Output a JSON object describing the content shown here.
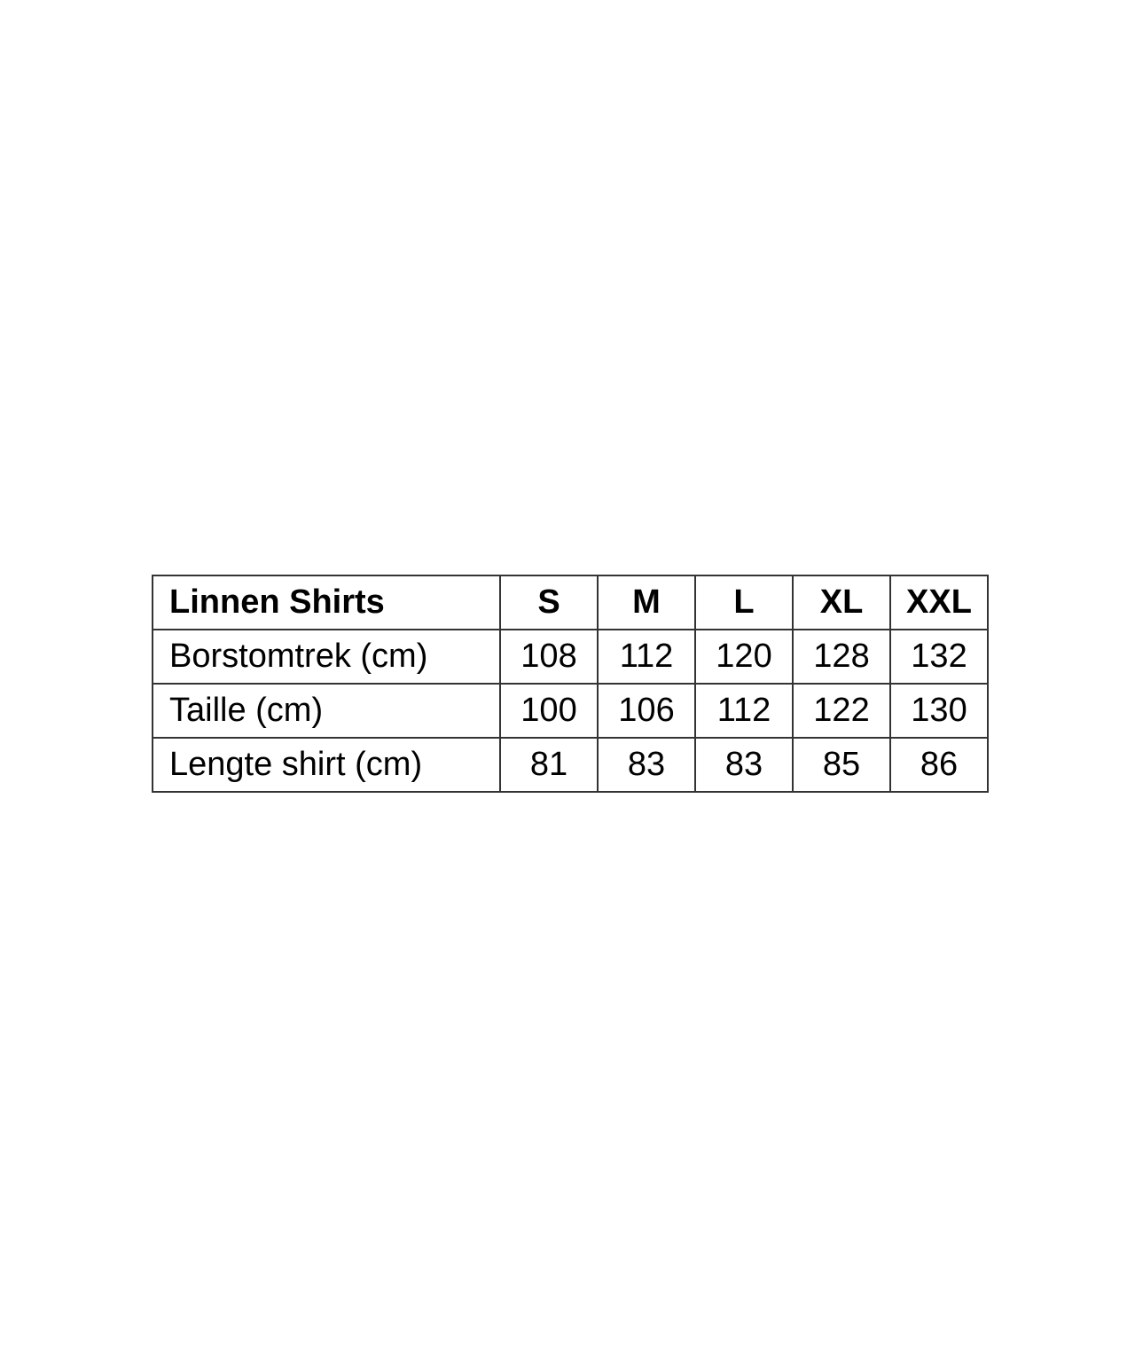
{
  "table": {
    "title": "Linnen Shirts",
    "sizes": [
      "S",
      "M",
      "L",
      "XL",
      "XXL"
    ],
    "rows": [
      {
        "label": "Borstomtrek (cm)",
        "values": [
          "108",
          "112",
          "120",
          "128",
          "132"
        ]
      },
      {
        "label": "Taille (cm)",
        "values": [
          "100",
          "106",
          "112",
          "122",
          "130"
        ]
      },
      {
        "label": "Lengte shirt (cm)",
        "values": [
          "81",
          "83",
          "83",
          "85",
          "86"
        ]
      }
    ]
  },
  "colors": {
    "border": "#333333",
    "text": "#000000",
    "background": "#ffffff"
  }
}
